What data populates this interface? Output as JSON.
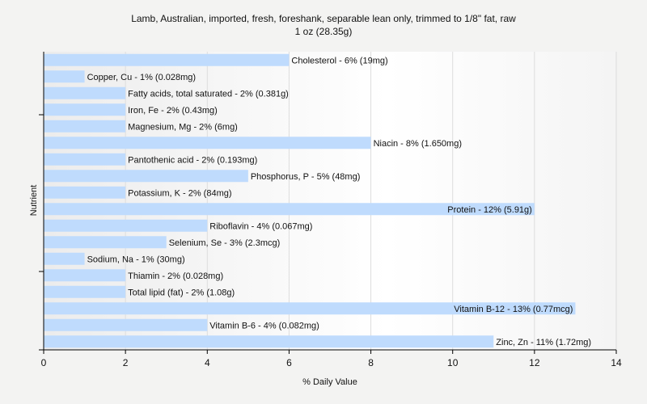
{
  "chart_data": {
    "type": "bar",
    "orientation": "horizontal",
    "title": "Lamb, Australian, imported, fresh, foreshank, separable lean only, trimmed to 1/8\" fat, raw",
    "subtitle": "1 oz (28.35g)",
    "xlabel": "% Daily Value",
    "ylabel": "Nutrient",
    "xlim": [
      0,
      14
    ],
    "xticks": [
      0,
      2,
      4,
      6,
      8,
      10,
      12,
      14
    ],
    "grid": true,
    "bar_color": "#bfdbfd",
    "categories": [
      "Cholesterol",
      "Copper, Cu",
      "Fatty acids, total saturated",
      "Iron, Fe",
      "Magnesium, Mg",
      "Niacin",
      "Pantothenic acid",
      "Phosphorus, P",
      "Potassium, K",
      "Protein",
      "Riboflavin",
      "Selenium, Se",
      "Sodium, Na",
      "Thiamin",
      "Total lipid (fat)",
      "Vitamin B-12",
      "Vitamin B-6",
      "Zinc, Zn"
    ],
    "values": [
      6,
      1,
      2,
      2,
      2,
      8,
      2,
      5,
      2,
      12,
      4,
      3,
      1,
      2,
      2,
      13,
      4,
      11
    ],
    "labels": [
      "Cholesterol - 6% (19mg)",
      "Copper, Cu - 1% (0.028mg)",
      "Fatty acids, total saturated - 2% (0.381g)",
      "Iron, Fe - 2% (0.43mg)",
      "Magnesium, Mg - 2% (6mg)",
      "Niacin - 8% (1.650mg)",
      "Pantothenic acid - 2% (0.193mg)",
      "Phosphorus, P - 5% (48mg)",
      "Potassium, K - 2% (84mg)",
      "Protein - 12% (5.91g)",
      "Riboflavin - 4% (0.067mg)",
      "Selenium, Se - 3% (2.3mcg)",
      "Sodium, Na - 1% (30mg)",
      "Thiamin - 2% (0.028mg)",
      "Total lipid (fat) - 2% (1.08g)",
      "Vitamin B-12 - 13% (0.77mcg)",
      "Vitamin B-6 - 4% (0.082mg)",
      "Zinc, Zn - 11% (1.72mg)"
    ]
  }
}
